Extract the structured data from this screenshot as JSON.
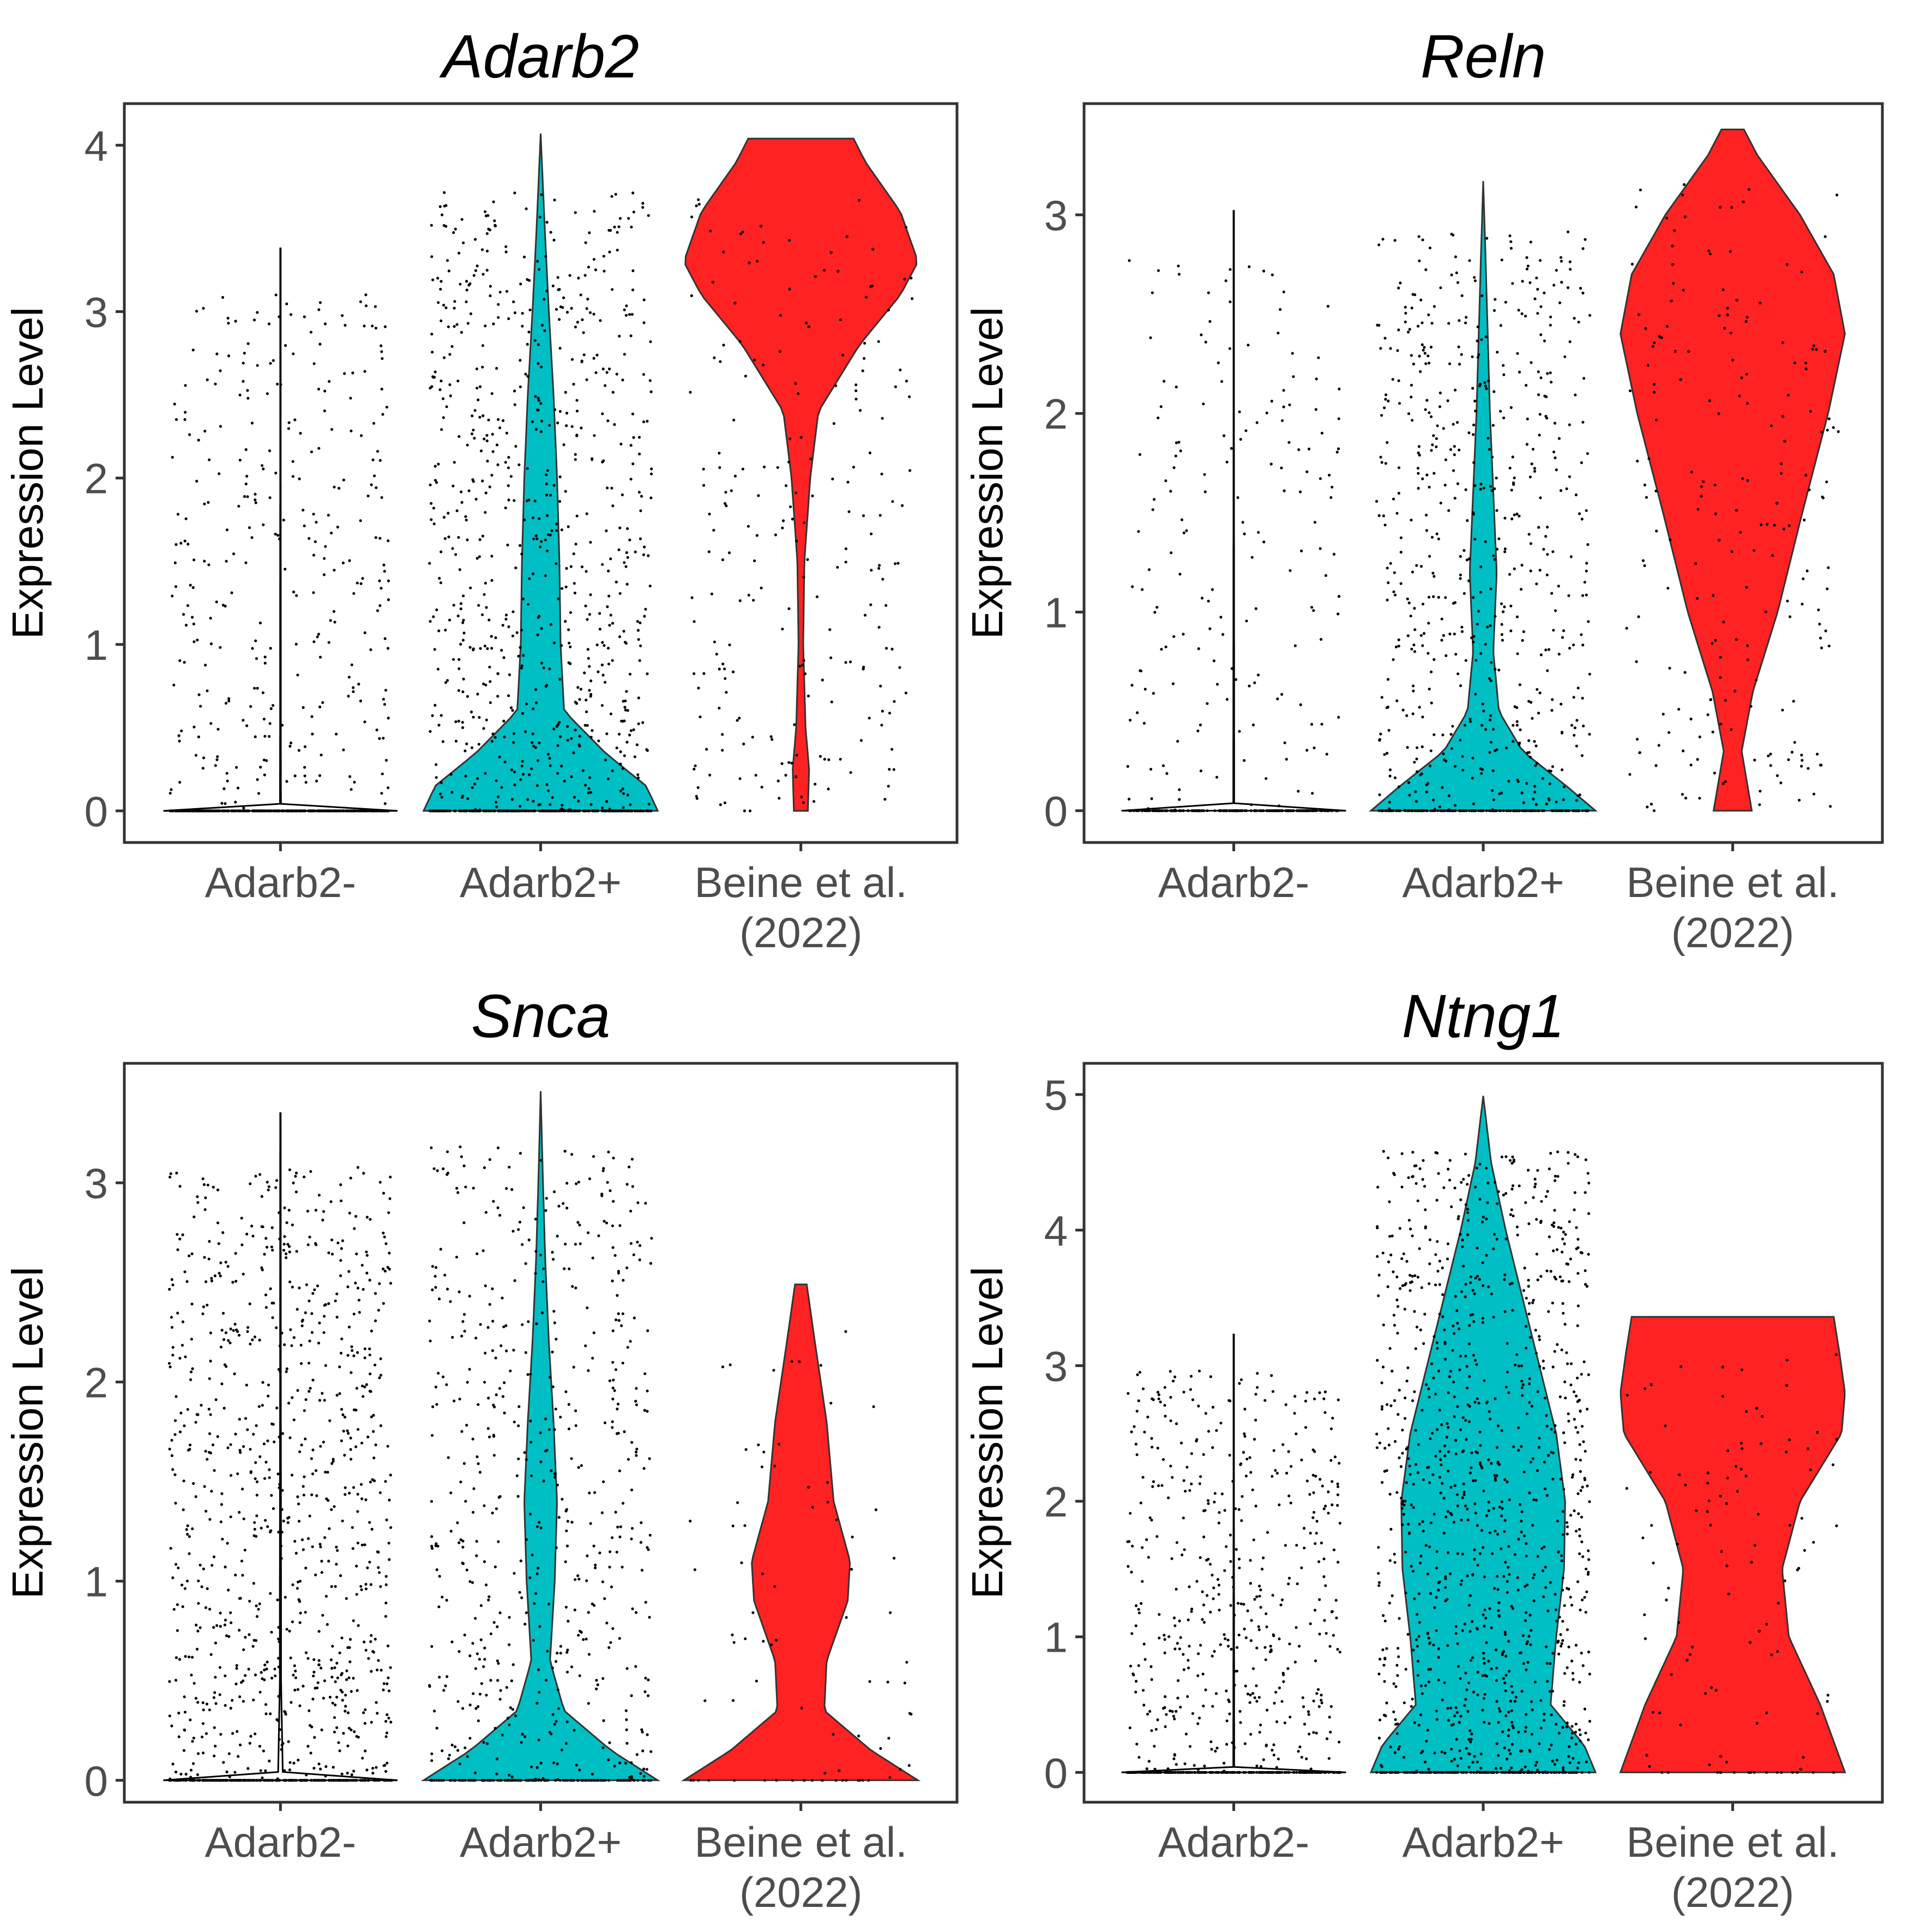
{
  "colors": {
    "Adarb2-": "#000000",
    "Adarb2+": "#00BFC4",
    "Beine et al.\n(2022)": "#FF2222",
    "outline": "#333333",
    "points": "#000000"
  },
  "chart_data": [
    {
      "type": "violin",
      "title": "Adarb2",
      "ylabel": "Expression Level",
      "ylim": [
        -0.19,
        4.25
      ],
      "yticks": [
        "0",
        "1",
        "2",
        "3",
        "4"
      ],
      "categories": [
        "Adarb2-",
        "Adarb2+",
        "Beine et al.\n(2022)"
      ],
      "series": [
        {
          "category": "Adarb2-",
          "max": 3.38,
          "jitter_zero_frac": 0.55,
          "n_points": 700,
          "profile": [
            [
              0,
              1
            ],
            [
              0.04,
              0.004
            ],
            [
              0.5,
              0.003
            ],
            [
              1.0,
              0.003
            ],
            [
              2.0,
              0.002
            ],
            [
              3.38,
              0.002
            ]
          ]
        },
        {
          "category": "Adarb2+",
          "max": 4.07,
          "jitter_zero_frac": 0.25,
          "n_points": 1000,
          "profile": [
            [
              0,
              1.0
            ],
            [
              0.15,
              0.9
            ],
            [
              0.35,
              0.55
            ],
            [
              0.6,
              0.2
            ],
            [
              1.0,
              0.17
            ],
            [
              1.5,
              0.16
            ],
            [
              2.0,
              0.14
            ],
            [
              2.5,
              0.11
            ],
            [
              3.0,
              0.07
            ],
            [
              3.5,
              0.035
            ],
            [
              4.07,
              0.0
            ]
          ]
        },
        {
          "category": "Beine et al.\n(2022)",
          "max": 4.04,
          "jitter_zero_frac": 0.02,
          "n_points": 220,
          "profile": [
            [
              0,
              0.06
            ],
            [
              0.25,
              0.07
            ],
            [
              0.5,
              0.04
            ],
            [
              1.0,
              0.02
            ],
            [
              1.5,
              0.03
            ],
            [
              2.0,
              0.08
            ],
            [
              2.4,
              0.15
            ],
            [
              2.8,
              0.5
            ],
            [
              3.1,
              0.85
            ],
            [
              3.3,
              1.0
            ],
            [
              3.6,
              0.85
            ],
            [
              3.9,
              0.55
            ],
            [
              4.04,
              0.45
            ]
          ]
        }
      ]
    },
    {
      "type": "violin",
      "title": "Reln",
      "ylabel": "Expression Level",
      "ylim": [
        -0.16,
        3.56
      ],
      "yticks": [
        "0",
        "1",
        "2",
        "3"
      ],
      "categories": [
        "Adarb2-",
        "Adarb2+",
        "Beine et al.\n(2022)"
      ],
      "series": [
        {
          "category": "Adarb2-",
          "max": 3.02,
          "jitter_zero_frac": 0.6,
          "n_points": 400,
          "profile": [
            [
              0,
              1
            ],
            [
              0.03,
              0.004
            ],
            [
              1.0,
              0.003
            ],
            [
              2.0,
              0.002
            ],
            [
              3.02,
              0.002
            ]
          ]
        },
        {
          "category": "Adarb2+",
          "max": 3.17,
          "jitter_zero_frac": 0.3,
          "n_points": 800,
          "profile": [
            [
              0,
              1.0
            ],
            [
              0.12,
              0.75
            ],
            [
              0.3,
              0.35
            ],
            [
              0.5,
              0.14
            ],
            [
              0.8,
              0.09
            ],
            [
              1.2,
              0.12
            ],
            [
              1.6,
              0.09
            ],
            [
              2.0,
              0.06
            ],
            [
              2.5,
              0.035
            ],
            [
              2.8,
              0.02
            ],
            [
              3.17,
              0.0
            ]
          ]
        },
        {
          "category": "Beine et al.\n(2022)",
          "max": 3.43,
          "jitter_zero_frac": 0.02,
          "n_points": 200,
          "profile": [
            [
              0,
              0.17
            ],
            [
              0.3,
              0.08
            ],
            [
              0.6,
              0.18
            ],
            [
              1.0,
              0.4
            ],
            [
              1.5,
              0.62
            ],
            [
              2.0,
              0.85
            ],
            [
              2.4,
              1.0
            ],
            [
              2.7,
              0.9
            ],
            [
              3.0,
              0.6
            ],
            [
              3.3,
              0.22
            ],
            [
              3.43,
              0.1
            ]
          ]
        }
      ]
    },
    {
      "type": "violin",
      "title": "Snca",
      "ylabel": "Expression Level",
      "ylim": [
        -0.11,
        3.6
      ],
      "yticks": [
        "0",
        "1",
        "2",
        "3"
      ],
      "categories": [
        "Adarb2-",
        "Adarb2+",
        "Beine et al.\n(2022)"
      ],
      "series": [
        {
          "category": "Adarb2-",
          "max": 3.35,
          "jitter_zero_frac": 0.2,
          "n_points": 1100,
          "profile": [
            [
              0,
              1
            ],
            [
              0.03,
              0.02
            ],
            [
              0.5,
              0.005
            ],
            [
              1.0,
              0.005
            ],
            [
              2.0,
              0.003
            ],
            [
              3.35,
              0.002
            ]
          ]
        },
        {
          "category": "Adarb2+",
          "max": 3.46,
          "jitter_zero_frac": 0.2,
          "n_points": 700,
          "profile": [
            [
              0,
              1.0
            ],
            [
              0.15,
              0.6
            ],
            [
              0.35,
              0.2
            ],
            [
              0.6,
              0.08
            ],
            [
              1.0,
              0.12
            ],
            [
              1.4,
              0.14
            ],
            [
              1.8,
              0.11
            ],
            [
              2.2,
              0.07
            ],
            [
              2.6,
              0.04
            ],
            [
              3.0,
              0.02
            ],
            [
              3.46,
              0.0
            ]
          ]
        },
        {
          "category": "Beine et al.\n(2022)",
          "max": 2.49,
          "jitter_zero_frac": 0.3,
          "n_points": 80,
          "profile": [
            [
              0,
              1.0
            ],
            [
              0.15,
              0.6
            ],
            [
              0.35,
              0.2
            ],
            [
              0.6,
              0.22
            ],
            [
              0.9,
              0.4
            ],
            [
              1.1,
              0.42
            ],
            [
              1.4,
              0.28
            ],
            [
              1.8,
              0.22
            ],
            [
              2.2,
              0.12
            ],
            [
              2.49,
              0.05
            ]
          ]
        }
      ]
    },
    {
      "type": "violin",
      "title": "Ntng1",
      "ylabel": "Expression Level",
      "ylim": [
        -0.22,
        5.23
      ],
      "yticks": [
        "0",
        "1",
        "2",
        "3",
        "4",
        "5"
      ],
      "categories": [
        "Adarb2-",
        "Adarb2+",
        "Beine et al.\n(2022)"
      ],
      "series": [
        {
          "category": "Adarb2-",
          "max": 3.23,
          "jitter_zero_frac": 0.35,
          "n_points": 700,
          "profile": [
            [
              0,
              1
            ],
            [
              0.03,
              0.004
            ],
            [
              1.0,
              0.003
            ],
            [
              2.0,
              0.002
            ],
            [
              3.23,
              0.002
            ]
          ]
        },
        {
          "category": "Adarb2+",
          "max": 4.99,
          "jitter_zero_frac": 0.15,
          "n_points": 1200,
          "profile": [
            [
              0,
              1.0
            ],
            [
              0.2,
              0.9
            ],
            [
              0.5,
              0.6
            ],
            [
              1.0,
              0.65
            ],
            [
              1.5,
              0.72
            ],
            [
              2.0,
              0.73
            ],
            [
              2.5,
              0.65
            ],
            [
              3.0,
              0.5
            ],
            [
              3.5,
              0.35
            ],
            [
              4.0,
              0.2
            ],
            [
              4.5,
              0.07
            ],
            [
              4.99,
              0.0
            ]
          ]
        },
        {
          "category": "Beine et al.\n(2022)",
          "max": 3.36,
          "jitter_zero_frac": 0.15,
          "n_points": 110,
          "profile": [
            [
              0,
              1.0
            ],
            [
              0.5,
              0.78
            ],
            [
              1.0,
              0.5
            ],
            [
              1.5,
              0.44
            ],
            [
              2.0,
              0.6
            ],
            [
              2.5,
              0.97
            ],
            [
              2.8,
              1.0
            ],
            [
              3.1,
              0.95
            ],
            [
              3.36,
              0.9
            ]
          ]
        }
      ]
    }
  ]
}
